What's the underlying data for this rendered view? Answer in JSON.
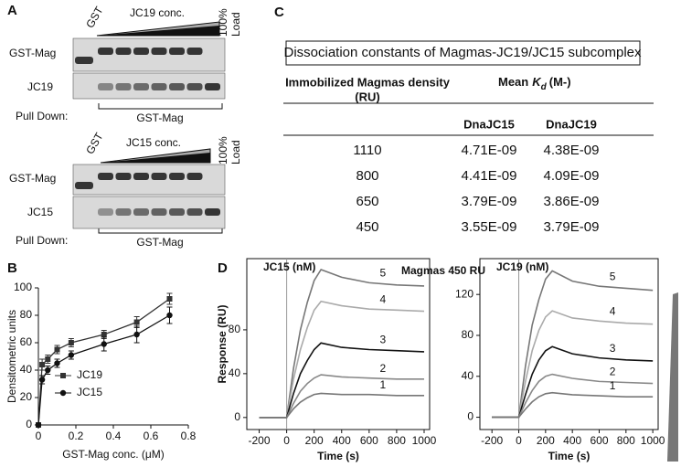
{
  "panel_labels": [
    "A",
    "B",
    "C",
    "D"
  ],
  "gel_a": {
    "lane_gst": "GST",
    "conc": "JC19 conc.",
    "load": [
      "100%",
      "Load"
    ],
    "row1": "GST-Mag",
    "row2": "JC19",
    "pull_down": "Pull Down:",
    "pull_down_target": "GST-Mag"
  },
  "gel_b": {
    "lane_gst": "GST",
    "conc": "JC15 conc.",
    "load": [
      "100%",
      "Load"
    ],
    "row1": "GST-Mag",
    "row2": "JC15",
    "pull_down": "Pull Down:",
    "pull_down_target": "GST-Mag"
  },
  "table": {
    "title": "Dissociation constants of Magmas-JC19/JC15 subcomplex",
    "col1_header": [
      "Immobilized Magmas density",
      "(RU)"
    ],
    "kd_header": {
      "mean": "Mean",
      "k": "K",
      "d": "d",
      "unit": "(M-)"
    },
    "subheaders": [
      "DnaJC15",
      "DnaJC19"
    ],
    "rows": [
      [
        1110,
        "4.71E-09",
        "4.38E-09"
      ],
      [
        800,
        "4.41E-09",
        "4.09E-09"
      ],
      [
        650,
        "3.79E-09",
        "3.86E-09"
      ],
      [
        450,
        "3.55E-09",
        "3.79E-09"
      ]
    ]
  },
  "sensorgram_title": "Magmas 450 RU",
  "chart_data": [
    {
      "type": "line",
      "xlabel": "GST-Mag conc. (μM)",
      "ylabel": "Densitometric units",
      "x": [
        0,
        0.02,
        0.05,
        0.1,
        0.175,
        0.35,
        0.525,
        0.7
      ],
      "series": [
        {
          "name": "JC19",
          "color": "#333333",
          "marker": "square",
          "values": [
            0,
            44,
            48,
            55,
            60,
            66,
            75,
            92
          ],
          "errors": [
            0,
            4,
            3,
            3,
            3,
            3,
            4,
            4
          ]
        },
        {
          "name": "JC15",
          "color": "#111111",
          "marker": "circle",
          "values": [
            0,
            33,
            40,
            45,
            51,
            59,
            66,
            80
          ],
          "errors": [
            0,
            3,
            3,
            3,
            3,
            5,
            6,
            6
          ]
        }
      ],
      "xlim": [
        0,
        0.8
      ],
      "xticks": [
        0,
        0.2,
        0.4,
        0.6,
        0.8
      ],
      "ylim": [
        0,
        100
      ],
      "yticks": [
        0,
        20,
        40,
        60,
        80,
        100
      ]
    },
    {
      "type": "line",
      "title": "JC15 (nM)",
      "xlabel": "Time (s)",
      "ylabel": "Response (RU)",
      "x": [
        -200,
        0,
        50,
        100,
        150,
        200,
        250,
        400,
        600,
        800,
        1000
      ],
      "series": [
        {
          "name": "5",
          "color": "#777777",
          "values": [
            0,
            0,
            45,
            80,
            105,
            125,
            135,
            128,
            123,
            121,
            120
          ]
        },
        {
          "name": "4",
          "color": "#aaaaaa",
          "values": [
            0,
            0,
            35,
            62,
            82,
            98,
            106,
            102,
            99,
            98,
            97
          ]
        },
        {
          "name": "3",
          "color": "#111111",
          "values": [
            0,
            0,
            22,
            40,
            52,
            62,
            68,
            64,
            62,
            61,
            60
          ]
        },
        {
          "name": "2",
          "color": "#888888",
          "values": [
            0,
            0,
            13,
            24,
            31,
            36,
            39,
            37,
            36,
            35,
            35
          ]
        },
        {
          "name": "1",
          "color": "#777777",
          "values": [
            0,
            0,
            8,
            14,
            18,
            21,
            22,
            21,
            21,
            20,
            20
          ]
        }
      ],
      "xlim": [
        -290,
        1040
      ],
      "xticks": [
        -200,
        0,
        200,
        400,
        600,
        800,
        1000
      ],
      "ylim": [
        -11,
        145
      ],
      "yticks": [
        0,
        40,
        80
      ]
    },
    {
      "type": "line",
      "title": "JC19 (nM)",
      "xlabel": "Time (s)",
      "x": [
        -200,
        0,
        50,
        100,
        150,
        200,
        250,
        400,
        600,
        800,
        1000
      ],
      "series": [
        {
          "name": "5",
          "color": "#777777",
          "values": [
            0,
            0,
            50,
            90,
            115,
            135,
            143,
            133,
            128,
            126,
            124
          ]
        },
        {
          "name": "4",
          "color": "#aaaaaa",
          "values": [
            0,
            0,
            35,
            65,
            85,
            98,
            104,
            97,
            94,
            92,
            91
          ]
        },
        {
          "name": "3",
          "color": "#111111",
          "values": [
            0,
            0,
            22,
            42,
            56,
            65,
            69,
            62,
            58,
            56,
            55
          ]
        },
        {
          "name": "2",
          "color": "#888888",
          "values": [
            0,
            0,
            14,
            26,
            35,
            40,
            42,
            38,
            35,
            34,
            33
          ]
        },
        {
          "name": "1",
          "color": "#777777",
          "values": [
            0,
            0,
            8,
            15,
            20,
            23,
            24,
            22,
            21,
            20,
            20
          ]
        }
      ],
      "xlim": [
        -290,
        1040
      ],
      "xticks": [
        -200,
        0,
        200,
        400,
        600,
        800,
        1000
      ],
      "ylim": [
        -12,
        155
      ],
      "yticks": [
        0,
        40,
        80,
        120
      ]
    }
  ]
}
